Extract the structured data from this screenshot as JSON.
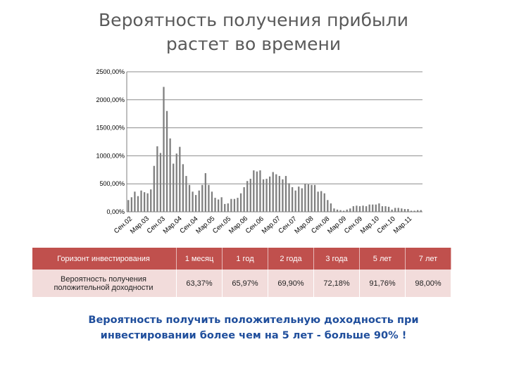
{
  "slide": {
    "title_line1": "Вероятность получения прибыли",
    "title_line2": "растет во времени",
    "note_line1": "Вероятность получить положительную доходность при",
    "note_line2": "инвестировании более чем на 5 лет -  больше  90% !"
  },
  "chart_data": {
    "type": "bar",
    "y_ticks": [
      "0,00%",
      "500,00%",
      "1000,00%",
      "1500,00%",
      "2000,00%",
      "2500,00%"
    ],
    "ylim": [
      0,
      2500
    ],
    "grid": true,
    "x_tick_labels": [
      "Сен.02",
      "Мар.03",
      "Сен.03",
      "Мар.04",
      "Сен.04",
      "Мар.05",
      "Сен.05",
      "Мар.06",
      "Сен.06",
      "Мар.07",
      "Сен.07",
      "Мар.08",
      "Сен.08",
      "Мар.09",
      "Сен.09",
      "Мар.10",
      "Сен.10",
      "Мар.11"
    ],
    "values": [
      210,
      260,
      360,
      280,
      380,
      350,
      330,
      400,
      820,
      1170,
      1050,
      2230,
      1800,
      1310,
      860,
      1040,
      1160,
      850,
      640,
      480,
      360,
      300,
      380,
      480,
      690,
      480,
      360,
      250,
      220,
      260,
      140,
      150,
      230,
      230,
      250,
      330,
      440,
      550,
      590,
      740,
      720,
      740,
      580,
      590,
      630,
      710,
      670,
      640,
      580,
      640,
      510,
      440,
      380,
      450,
      420,
      500,
      490,
      480,
      480,
      360,
      370,
      330,
      210,
      150,
      60,
      40,
      30,
      20,
      40,
      60,
      100,
      110,
      100,
      110,
      100,
      130,
      130,
      130,
      150,
      100,
      100,
      90,
      40,
      70,
      70,
      60,
      50,
      50,
      20,
      20,
      30,
      30
    ]
  },
  "table": {
    "header_label": "Горизонт инвестирования",
    "row_label_line1": "Вероятность получения",
    "row_label_line2": "положительной доходности",
    "horizons": [
      "1 месяц",
      "1 год",
      "2 года",
      "3 года",
      "5 лет",
      "7 лет"
    ],
    "probabilities": [
      "63,37%",
      "65,97%",
      "69,90%",
      "72,18%",
      "91,76%",
      "98,00%"
    ]
  },
  "colors": {
    "table_header_bg": "#c0504d",
    "table_row_bg": "#f2dcdb",
    "note_text": "#1f4e9c",
    "bar": "#7f7f7f"
  }
}
